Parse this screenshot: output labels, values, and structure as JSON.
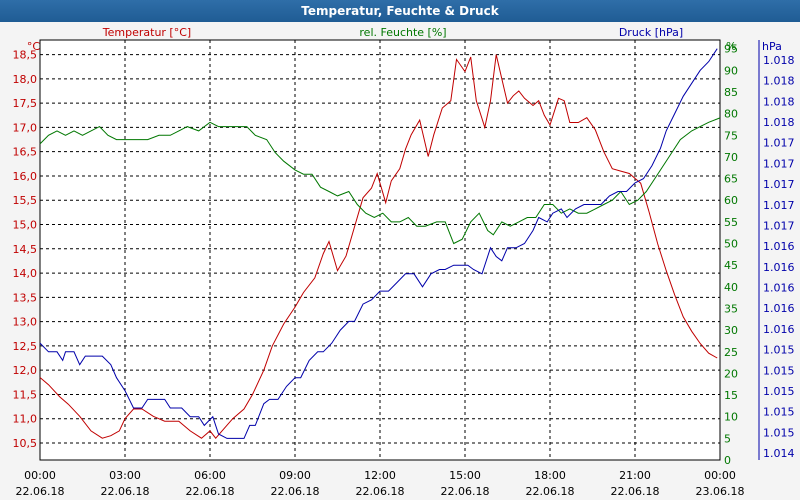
{
  "window": {
    "title": "Temperatur, Feuchte & Druck"
  },
  "chart_data": {
    "type": "line",
    "title": "Temperatur, Feuchte & Druck",
    "x_ticks": [
      "00:00",
      "03:00",
      "06:00",
      "09:00",
      "12:00",
      "15:00",
      "18:00",
      "21:00",
      "00:00"
    ],
    "x_dates": [
      "22.06.18",
      "22.06.18",
      "22.06.18",
      "22.06.18",
      "22.06.18",
      "22.06.18",
      "22.06.18",
      "22.06.18",
      "23.06.18"
    ],
    "xlim_hours": [
      0,
      24
    ],
    "axes": {
      "temperature": {
        "unit": "°C",
        "ylim": [
          10.15,
          18.8
        ],
        "ticks": [
          "10,5",
          "11,0",
          "11,5",
          "12,0",
          "12,5",
          "13,0",
          "13,5",
          "14,0",
          "14,5",
          "15,0",
          "15,5",
          "16,0",
          "16,5",
          "17,0",
          "17,5",
          "18,0",
          "18,5"
        ],
        "color": "#c00000"
      },
      "humidity": {
        "unit": "%",
        "ylim": [
          0,
          97
        ],
        "ticks": [
          "0",
          "5",
          "10",
          "15",
          "20",
          "25",
          "30",
          "35",
          "40",
          "45",
          "50",
          "55",
          "60",
          "65",
          "70",
          "75",
          "80",
          "85",
          "90",
          "95"
        ],
        "color": "#007700"
      },
      "pressure": {
        "unit": "hPa",
        "ticks": [
          "1.014",
          "1.015",
          "1.015",
          "1.015",
          "1.015",
          "1.015",
          "1.016",
          "1.016",
          "1.016",
          "1.016",
          "1.016",
          "1.017",
          "1.017",
          "1.017",
          "1.017",
          "1.017",
          "1.018",
          "1.018",
          "1.018",
          "1.018"
        ],
        "color": "#0000aa"
      }
    },
    "series": [
      {
        "name": "Temperatur [°C]",
        "axis": "temperature",
        "color": "#c00000",
        "points": [
          [
            0,
            11.85
          ],
          [
            0.3,
            11.7
          ],
          [
            0.7,
            11.45
          ],
          [
            1.0,
            11.3
          ],
          [
            1.4,
            11.05
          ],
          [
            1.8,
            10.75
          ],
          [
            2.2,
            10.6
          ],
          [
            2.5,
            10.65
          ],
          [
            2.8,
            10.75
          ],
          [
            3.0,
            11.0
          ],
          [
            3.3,
            11.2
          ],
          [
            3.6,
            11.2
          ],
          [
            4.0,
            11.05
          ],
          [
            4.4,
            10.95
          ],
          [
            4.9,
            10.95
          ],
          [
            5.3,
            10.75
          ],
          [
            5.7,
            10.6
          ],
          [
            6.0,
            10.75
          ],
          [
            6.2,
            10.6
          ],
          [
            6.5,
            10.8
          ],
          [
            6.8,
            11.0
          ],
          [
            7.2,
            11.2
          ],
          [
            7.5,
            11.5
          ],
          [
            7.9,
            12.0
          ],
          [
            8.2,
            12.5
          ],
          [
            8.6,
            12.95
          ],
          [
            9.0,
            13.3
          ],
          [
            9.3,
            13.6
          ],
          [
            9.7,
            13.9
          ],
          [
            10.0,
            14.4
          ],
          [
            10.2,
            14.65
          ],
          [
            10.5,
            14.05
          ],
          [
            10.8,
            14.35
          ],
          [
            11.1,
            14.95
          ],
          [
            11.4,
            15.55
          ],
          [
            11.7,
            15.75
          ],
          [
            11.9,
            16.05
          ],
          [
            12.2,
            15.45
          ],
          [
            12.4,
            15.9
          ],
          [
            12.7,
            16.15
          ],
          [
            12.9,
            16.55
          ],
          [
            13.1,
            16.85
          ],
          [
            13.4,
            17.15
          ],
          [
            13.7,
            16.4
          ],
          [
            13.9,
            16.85
          ],
          [
            14.2,
            17.4
          ],
          [
            14.5,
            17.55
          ],
          [
            14.7,
            18.4
          ],
          [
            15.0,
            18.15
          ],
          [
            15.2,
            18.45
          ],
          [
            15.4,
            17.55
          ],
          [
            15.7,
            17.0
          ],
          [
            15.9,
            17.55
          ],
          [
            16.1,
            18.5
          ],
          [
            16.3,
            18.0
          ],
          [
            16.5,
            17.5
          ],
          [
            16.7,
            17.65
          ],
          [
            16.9,
            17.75
          ],
          [
            17.1,
            17.6
          ],
          [
            17.4,
            17.45
          ],
          [
            17.6,
            17.55
          ],
          [
            17.8,
            17.25
          ],
          [
            18.0,
            17.05
          ],
          [
            18.3,
            17.6
          ],
          [
            18.5,
            17.55
          ],
          [
            18.7,
            17.1
          ],
          [
            19.0,
            17.1
          ],
          [
            19.3,
            17.2
          ],
          [
            19.6,
            16.95
          ],
          [
            19.9,
            16.5
          ],
          [
            20.2,
            16.15
          ],
          [
            20.5,
            16.1
          ],
          [
            20.8,
            16.05
          ],
          [
            21.2,
            15.85
          ],
          [
            21.5,
            15.25
          ],
          [
            21.8,
            14.6
          ],
          [
            22.1,
            14.05
          ],
          [
            22.4,
            13.55
          ],
          [
            22.7,
            13.1
          ],
          [
            23.0,
            12.8
          ],
          [
            23.3,
            12.55
          ],
          [
            23.6,
            12.35
          ],
          [
            23.9,
            12.25
          ]
        ]
      },
      {
        "name": "rel. Feuchte [%]",
        "axis": "humidity",
        "color": "#007700",
        "points": [
          [
            0,
            73
          ],
          [
            0.3,
            75
          ],
          [
            0.6,
            76
          ],
          [
            0.9,
            75
          ],
          [
            1.2,
            76
          ],
          [
            1.5,
            75
          ],
          [
            1.8,
            76
          ],
          [
            2.1,
            77
          ],
          [
            2.4,
            75
          ],
          [
            2.7,
            74
          ],
          [
            3.0,
            74
          ],
          [
            3.4,
            74
          ],
          [
            3.8,
            74
          ],
          [
            4.2,
            75
          ],
          [
            4.6,
            75
          ],
          [
            4.9,
            76
          ],
          [
            5.2,
            77
          ],
          [
            5.6,
            76
          ],
          [
            6.0,
            78
          ],
          [
            6.3,
            77
          ],
          [
            6.6,
            77
          ],
          [
            7.0,
            77
          ],
          [
            7.3,
            77
          ],
          [
            7.6,
            75
          ],
          [
            8.0,
            74
          ],
          [
            8.3,
            71
          ],
          [
            8.6,
            69
          ],
          [
            9.0,
            67
          ],
          [
            9.3,
            66
          ],
          [
            9.6,
            66
          ],
          [
            9.9,
            63
          ],
          [
            10.2,
            62
          ],
          [
            10.5,
            61
          ],
          [
            10.9,
            62
          ],
          [
            11.2,
            59
          ],
          [
            11.5,
            57
          ],
          [
            11.8,
            56
          ],
          [
            12.1,
            57
          ],
          [
            12.4,
            55
          ],
          [
            12.7,
            55
          ],
          [
            13.0,
            56
          ],
          [
            13.3,
            54
          ],
          [
            13.6,
            54
          ],
          [
            14.0,
            55
          ],
          [
            14.3,
            55
          ],
          [
            14.6,
            50
          ],
          [
            14.9,
            51
          ],
          [
            15.2,
            55
          ],
          [
            15.5,
            57
          ],
          [
            15.8,
            53
          ],
          [
            16.0,
            52
          ],
          [
            16.3,
            55
          ],
          [
            16.6,
            54
          ],
          [
            16.9,
            55
          ],
          [
            17.2,
            56
          ],
          [
            17.5,
            56
          ],
          [
            17.8,
            59
          ],
          [
            18.1,
            59
          ],
          [
            18.4,
            57
          ],
          [
            18.7,
            58
          ],
          [
            19.0,
            57
          ],
          [
            19.3,
            57
          ],
          [
            19.6,
            58
          ],
          [
            19.9,
            59
          ],
          [
            20.2,
            60
          ],
          [
            20.5,
            62
          ],
          [
            20.8,
            59
          ],
          [
            21.1,
            60
          ],
          [
            21.4,
            62
          ],
          [
            21.7,
            65
          ],
          [
            22.0,
            68
          ],
          [
            22.3,
            71
          ],
          [
            22.6,
            74
          ],
          [
            23.0,
            76
          ],
          [
            23.3,
            77
          ],
          [
            23.6,
            78
          ],
          [
            24.0,
            79
          ]
        ]
      },
      {
        "name": "Druck [hPa]",
        "axis": "pressure",
        "color": "#0000aa",
        "points": [
          [
            0,
            27
          ],
          [
            0.3,
            25
          ],
          [
            0.6,
            25
          ],
          [
            0.8,
            23
          ],
          [
            0.9,
            25
          ],
          [
            1.2,
            25
          ],
          [
            1.4,
            22
          ],
          [
            1.6,
            24
          ],
          [
            1.9,
            24
          ],
          [
            2.2,
            24
          ],
          [
            2.5,
            22
          ],
          [
            2.7,
            19
          ],
          [
            3.0,
            16
          ],
          [
            3.3,
            12
          ],
          [
            3.6,
            12
          ],
          [
            3.8,
            14
          ],
          [
            4.1,
            14
          ],
          [
            4.4,
            14
          ],
          [
            4.6,
            12
          ],
          [
            5.0,
            12
          ],
          [
            5.3,
            10
          ],
          [
            5.6,
            10
          ],
          [
            5.8,
            8
          ],
          [
            6.1,
            10
          ],
          [
            6.3,
            6
          ],
          [
            6.6,
            5
          ],
          [
            6.9,
            5
          ],
          [
            7.2,
            5
          ],
          [
            7.4,
            8
          ],
          [
            7.6,
            8
          ],
          [
            7.9,
            13
          ],
          [
            8.1,
            14
          ],
          [
            8.4,
            14
          ],
          [
            8.7,
            17
          ],
          [
            9.0,
            19
          ],
          [
            9.2,
            19
          ],
          [
            9.5,
            23
          ],
          [
            9.8,
            25
          ],
          [
            10.0,
            25
          ],
          [
            10.3,
            27
          ],
          [
            10.6,
            30
          ],
          [
            10.9,
            32
          ],
          [
            11.1,
            32
          ],
          [
            11.4,
            36
          ],
          [
            11.7,
            37
          ],
          [
            12.0,
            39
          ],
          [
            12.3,
            39
          ],
          [
            12.6,
            41
          ],
          [
            12.9,
            43
          ],
          [
            13.2,
            43
          ],
          [
            13.5,
            40
          ],
          [
            13.8,
            43
          ],
          [
            14.1,
            44
          ],
          [
            14.3,
            44
          ],
          [
            14.6,
            45
          ],
          [
            14.9,
            45
          ],
          [
            15.1,
            45
          ],
          [
            15.3,
            44
          ],
          [
            15.6,
            43
          ],
          [
            15.9,
            49
          ],
          [
            16.1,
            47
          ],
          [
            16.3,
            46
          ],
          [
            16.5,
            49
          ],
          [
            16.8,
            49
          ],
          [
            17.1,
            50
          ],
          [
            17.4,
            53
          ],
          [
            17.6,
            56
          ],
          [
            17.9,
            55
          ],
          [
            18.1,
            57
          ],
          [
            18.4,
            58
          ],
          [
            18.6,
            56
          ],
          [
            18.9,
            58
          ],
          [
            19.2,
            59
          ],
          [
            19.5,
            59
          ],
          [
            19.8,
            59
          ],
          [
            20.1,
            61
          ],
          [
            20.4,
            62
          ],
          [
            20.7,
            62
          ],
          [
            21.0,
            64
          ],
          [
            21.3,
            65
          ],
          [
            21.6,
            68
          ],
          [
            21.9,
            72
          ],
          [
            22.1,
            76
          ],
          [
            22.4,
            80
          ],
          [
            22.7,
            84
          ],
          [
            23.0,
            87
          ],
          [
            23.3,
            90
          ],
          [
            23.6,
            92
          ],
          [
            23.9,
            95
          ]
        ]
      }
    ]
  }
}
